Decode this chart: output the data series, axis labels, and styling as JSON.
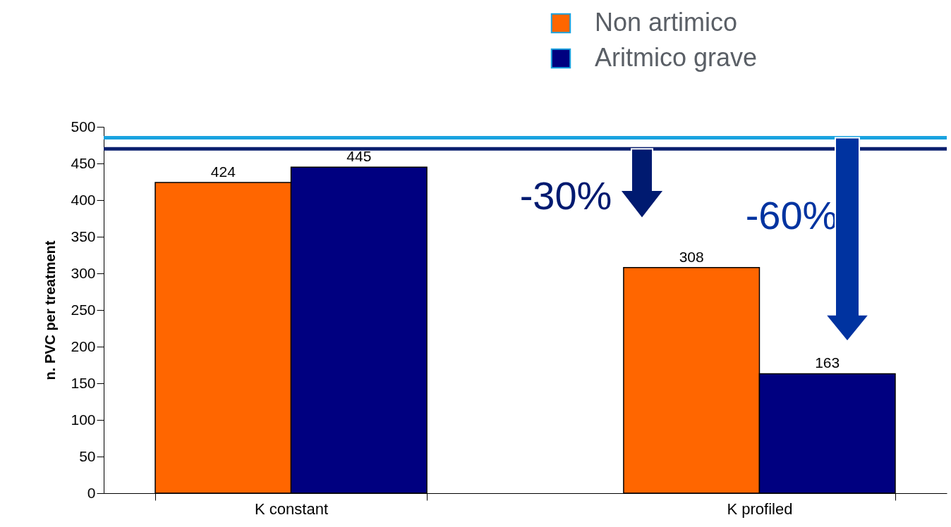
{
  "chart_data": {
    "type": "bar",
    "ylabel": "n. PVC per treatment",
    "categories": [
      "K constant",
      "K profiled"
    ],
    "series": [
      {
        "name": "Non artimico",
        "color": "#ff6600",
        "values": [
          424,
          308
        ]
      },
      {
        "name": "Aritmico grave",
        "color": "#000080",
        "values": [
          445,
          163
        ]
      }
    ],
    "ylim": [
      0,
      500
    ],
    "yticks": [
      0,
      50,
      100,
      150,
      200,
      250,
      300,
      350,
      400,
      450,
      500
    ],
    "data_labels": true,
    "legend": "top right",
    "grid": false,
    "ref_lines": [
      {
        "axis": "y",
        "value": 470,
        "color": "#0a1f6e"
      },
      {
        "axis": "y",
        "value": 485,
        "color": "#1aa3e0"
      }
    ],
    "annotations": [
      "-30%",
      "-60%"
    ]
  }
}
